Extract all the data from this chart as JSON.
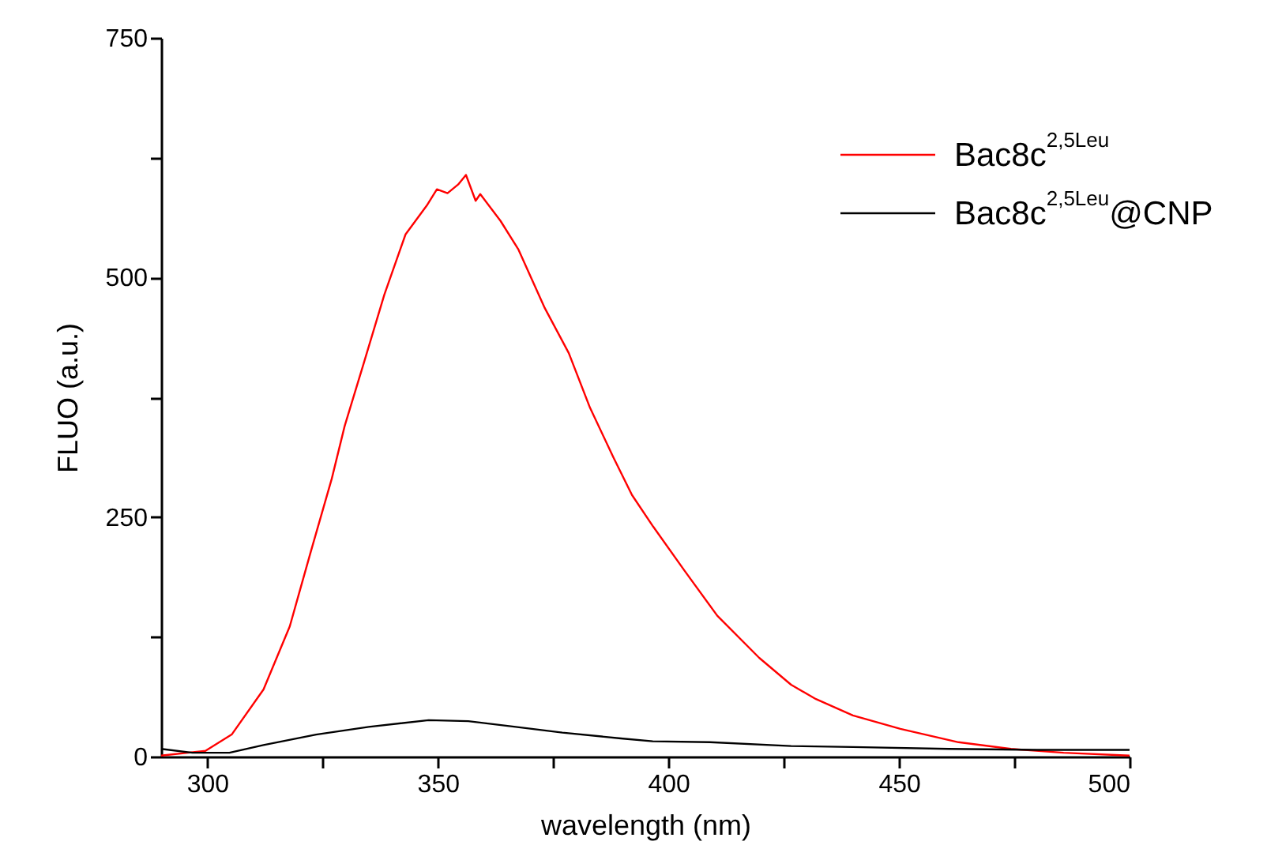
{
  "chart_data": {
    "type": "line",
    "xlabel": "wavelength (nm)",
    "ylabel": "FLUO (a.u.)",
    "xlim": [
      290,
      500
    ],
    "ylim": [
      0,
      750
    ],
    "xticks": [
      300,
      {
        "value": 325,
        "label": null
      },
      350,
      {
        "value": 375,
        "label": null
      },
      400,
      {
        "value": 425,
        "label": null
      },
      450,
      {
        "value": 475,
        "label": null
      },
      500
    ],
    "yticks": [
      0,
      {
        "value": 125,
        "label": null
      },
      250,
      {
        "value": 375,
        "label": null
      },
      500,
      {
        "value": 625,
        "label": null
      },
      750
    ],
    "legend": "top right",
    "line_style": "solid",
    "series": [
      {
        "name": "Bac8c$^{2,5Leu}$",
        "color": "#ff0000",
        "x": [
          290,
          299.6,
          305.3,
          312.2,
          317.9,
          322.4,
          327,
          329.8,
          333.9,
          338.4,
          343,
          347.6,
          349.8,
          352.1,
          354.4,
          356.1,
          358.2,
          359.2,
          363.6,
          367.5,
          373.2,
          378.4,
          383,
          388.1,
          392.1,
          396.7,
          403.5,
          410.6,
          419.7,
          426.6,
          432,
          440,
          450.3,
          462.9,
          474.3,
          485.7,
          500
        ],
        "values": [
          1,
          6,
          23,
          70,
          136,
          213,
          290,
          345,
          410,
          482,
          545,
          575,
          592,
          588,
          597,
          607,
          580,
          587,
          559,
          529,
          468,
          421,
          364,
          312,
          273,
          240,
          194,
          147,
          103,
          75,
          60,
          43,
          29,
          15,
          8,
          4,
          1
        ]
      },
      {
        "name": "Bac8c$^{2,5Leu}$@CNP",
        "color": "#000000",
        "x": [
          290,
          296.8,
          304.8,
          312.2,
          323.6,
          335,
          348,
          356.6,
          366.9,
          377,
          389.7,
          396.6,
          409,
          426.6,
          440,
          460.8,
          480,
          500
        ],
        "values": [
          8,
          4,
          4,
          12,
          23,
          31,
          38,
          37,
          31,
          25,
          19,
          16,
          15,
          11,
          10,
          8,
          7,
          7
        ]
      }
    ]
  }
}
